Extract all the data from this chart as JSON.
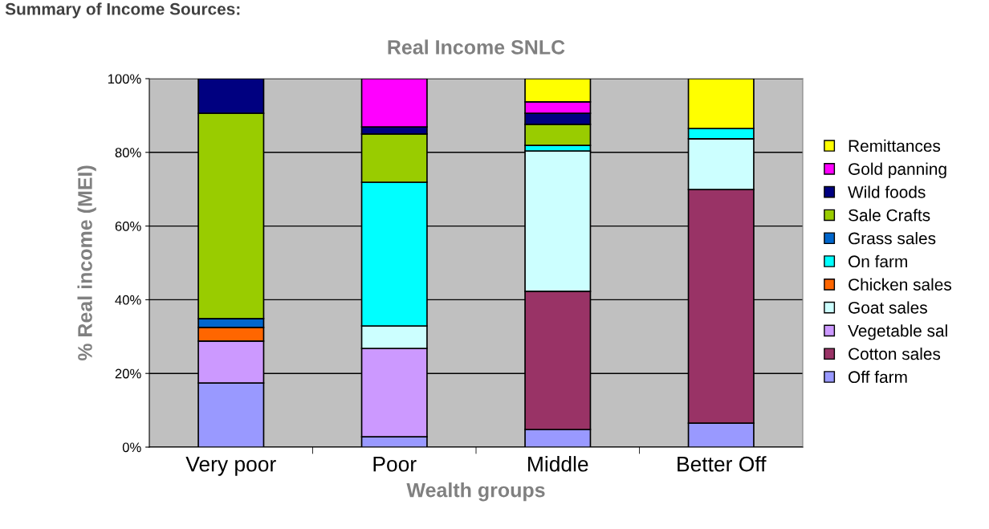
{
  "chart_data": {
    "type": "bar",
    "stacked": true,
    "title": "Real Income SNLC",
    "xlabel": "Wealth groups",
    "ylabel": "% Real income (MEI)",
    "annotations": [
      "Summary of Income Sources:"
    ],
    "categories": [
      "Very poor",
      "Poor",
      "Middle",
      "Better Off"
    ],
    "series": [
      {
        "name": "Off farm",
        "color": "#9999ff",
        "values": [
          17.4,
          2.8,
          4.8,
          6.5
        ]
      },
      {
        "name": "Cotton sales",
        "color": "#993366",
        "values": [
          null,
          null,
          37.5,
          63.4
        ]
      },
      {
        "name": "Vegetable sal",
        "color": "#cc99ff",
        "values": [
          11.4,
          24.0,
          null,
          null
        ]
      },
      {
        "name": "Goat sales",
        "color": "#ccffff",
        "values": [
          null,
          6.1,
          38.1,
          13.8
        ]
      },
      {
        "name": "Chicken sales",
        "color": "#ff6600",
        "values": [
          3.7,
          null,
          null,
          null
        ]
      },
      {
        "name": "On farm",
        "color": "#00ffff",
        "values": [
          null,
          39.0,
          1.5,
          2.8
        ]
      },
      {
        "name": "Grass sales",
        "color": "#0066cc",
        "values": [
          2.4,
          null,
          null,
          null
        ]
      },
      {
        "name": "Sale Crafts",
        "color": "#99cc00",
        "values": [
          55.7,
          13.1,
          5.7,
          null
        ]
      },
      {
        "name": "Wild foods",
        "color": "#000080",
        "values": [
          9.4,
          1.9,
          3.0,
          null
        ]
      },
      {
        "name": "Gold panning",
        "color": "#ff00ff",
        "values": [
          null,
          13.1,
          3.1,
          null
        ]
      },
      {
        "name": "Remittances",
        "color": "#ffff00",
        "values": [
          null,
          null,
          6.3,
          13.5
        ]
      }
    ],
    "ylim": [
      0,
      100
    ],
    "yticks": [
      {
        "value": 0,
        "label": "0%"
      },
      {
        "value": 20,
        "label": "20%"
      },
      {
        "value": 40,
        "label": "40%"
      },
      {
        "value": 60,
        "label": "60%"
      },
      {
        "value": 80,
        "label": "80%"
      },
      {
        "value": 100,
        "label": "100%"
      }
    ],
    "grid": "y",
    "legend": "right"
  }
}
